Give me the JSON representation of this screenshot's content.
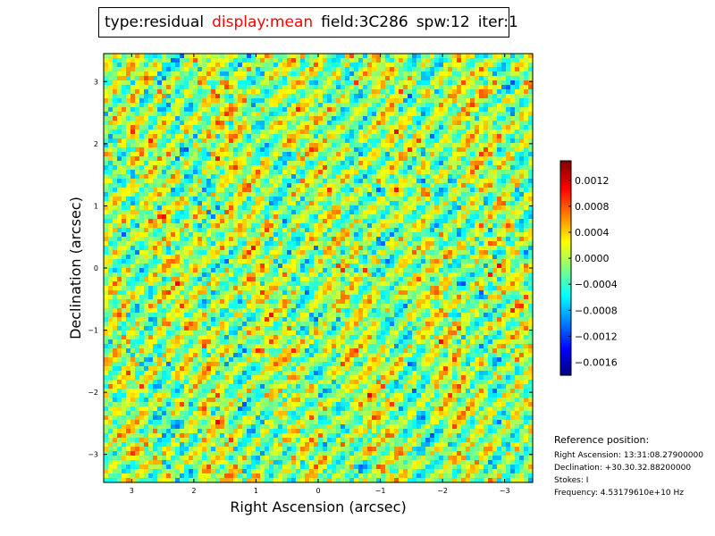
{
  "title_fields": [
    {
      "text": "type:residual",
      "highlight": false
    },
    {
      "text": "display:mean",
      "highlight": true
    },
    {
      "text": "field:3C286",
      "highlight": false
    },
    {
      "text": "spw:12",
      "highlight": false
    },
    {
      "text": "iter:1",
      "highlight": false
    }
  ],
  "colors": {
    "highlight": "#ff0000"
  },
  "chart_data": {
    "type": "heatmap",
    "title": "",
    "xlabel": "Right Ascension (arcsec)",
    "ylabel": "Declination (arcsec)",
    "xlim": [
      3.45,
      -3.45
    ],
    "ylim": [
      -3.45,
      3.45
    ],
    "xticks": [
      3,
      2,
      1,
      0,
      -1,
      -2,
      -3
    ],
    "xtick_labels": [
      "3",
      "2",
      "1",
      "0",
      "−1",
      "−2",
      "−3"
    ],
    "yticks": [
      3,
      2,
      1,
      0,
      -1,
      -2,
      -3
    ],
    "ytick_labels": [
      "3",
      "2",
      "1",
      "0",
      "−1",
      "−2",
      "−3"
    ],
    "colormap": "jet",
    "colorbar": {
      "range": [
        -0.0018,
        0.0015
      ],
      "ticks": [
        0.0012,
        0.0008,
        0.0004,
        0.0,
        -0.0004,
        -0.0008,
        -0.0012,
        -0.0016
      ],
      "tick_labels": [
        "0.0012",
        "0.0008",
        "0.0004",
        "0.0000",
        "−0.0004",
        "−0.0008",
        "−0.0012",
        "−0.0016"
      ]
    },
    "grid": false
  },
  "reference": {
    "title": "Reference position:",
    "right_ascension": "Right Ascension: 13:31:08.27900000",
    "declination": "Declination: +30.30.32.88200000",
    "stokes": "Stokes: I",
    "frequency": "Frequency: 4.53179610e+10 Hz"
  }
}
